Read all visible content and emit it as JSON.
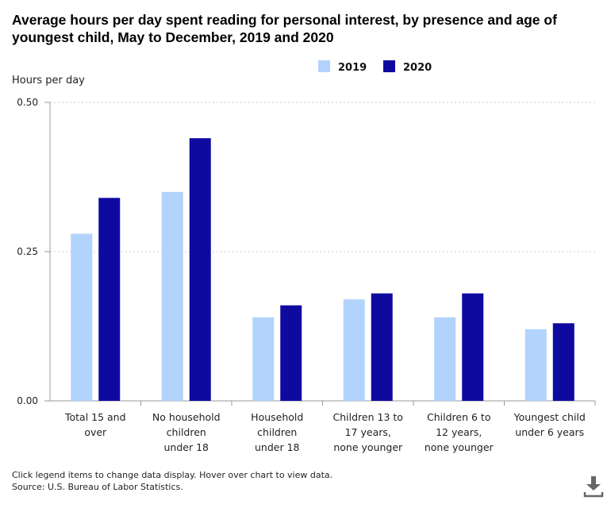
{
  "chart_data": {
    "type": "bar",
    "title": "Average hours per day spent reading for personal interest, by presence and age of youngest child, May to December, 2019 and 2020",
    "ylabel": "Hours per day",
    "xlabel": "",
    "ylim": [
      0,
      0.5
    ],
    "yticks": [
      "0.00",
      "0.25",
      "0.50"
    ],
    "ytick_values": [
      0,
      0.25,
      0.5
    ],
    "grid": true,
    "legend_position": "top-right",
    "categories": [
      [
        "Total 15 and",
        "over"
      ],
      [
        "No household",
        "children",
        "under 18"
      ],
      [
        "Household",
        "children",
        "under 18"
      ],
      [
        "Children 13 to",
        "17 years,",
        "none younger"
      ],
      [
        "Children 6 to",
        "12 years,",
        "none younger"
      ],
      [
        "Youngest child",
        "under 6 years"
      ]
    ],
    "series": [
      {
        "name": "2019",
        "color": "#b2d3fc",
        "values": [
          0.28,
          0.35,
          0.14,
          0.17,
          0.14,
          0.12
        ]
      },
      {
        "name": "2020",
        "color": "#0f0a9f",
        "values": [
          0.34,
          0.44,
          0.16,
          0.18,
          0.18,
          0.13
        ]
      }
    ]
  },
  "footer": {
    "note": "Click legend items to change data display. Hover over chart to view data.",
    "source": "Source: U.S. Bureau of Labor Statistics."
  },
  "icons": {
    "download": "download-icon"
  }
}
